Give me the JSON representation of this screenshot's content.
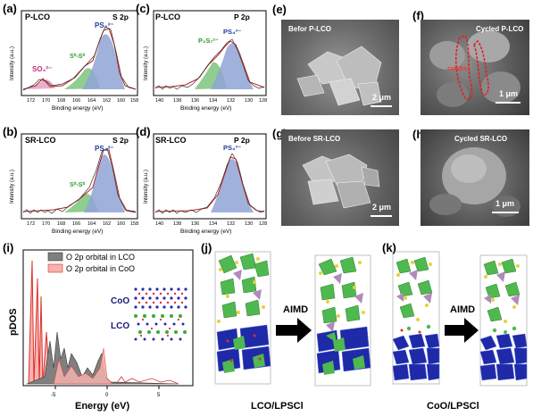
{
  "panels": {
    "a": {
      "letter": "(a)",
      "sample": "P-LCO",
      "orbital": "S 2p",
      "xlabel": "Binding energy (eV)",
      "ylabel": "Intensity (a.u.)",
      "ticks": [
        "172",
        "170",
        "168",
        "166",
        "164",
        "162",
        "160",
        "158"
      ],
      "peaks": [
        {
          "label": "SO₄²⁻",
          "color": "#c0307a"
        },
        {
          "label": "S⁰-S⁰",
          "color": "#2e9a2e"
        },
        {
          "label": "PS₄³⁻",
          "color": "#1f3f9e"
        }
      ]
    },
    "b": {
      "letter": "(b)",
      "sample": "SR-LCO",
      "orbital": "S 2p",
      "xlabel": "Binding energy (eV)",
      "ylabel": "Intensity (a.u.)",
      "ticks": [
        "172",
        "170",
        "168",
        "166",
        "164",
        "162",
        "160",
        "158"
      ],
      "peaks": [
        {
          "label": "S⁰-S⁰",
          "color": "#2e9a2e"
        },
        {
          "label": "PS₄³⁻",
          "color": "#1f3f9e"
        }
      ]
    },
    "c": {
      "letter": "(c)",
      "sample": "P-LCO",
      "orbital": "P 2p",
      "xlabel": "Binding energy (eV)",
      "ylabel": "Intensity (a.u.)",
      "ticks": [
        "140",
        "138",
        "136",
        "134",
        "132",
        "130",
        "128"
      ],
      "peaks": [
        {
          "label": "P₂S₇²⁻",
          "color": "#2e9a2e"
        },
        {
          "label": "PS₄³⁻",
          "color": "#1f3f9e"
        }
      ]
    },
    "d": {
      "letter": "(d)",
      "sample": "SR-LCO",
      "orbital": "P 2p",
      "xlabel": "Binding energy (eV)",
      "ylabel": "Intensity (a.u.)",
      "ticks": [
        "140",
        "138",
        "136",
        "134",
        "132",
        "130",
        "128"
      ],
      "peaks": [
        {
          "label": "PS₄³⁻",
          "color": "#1f3f9e"
        }
      ]
    },
    "e": {
      "letter": "(e)",
      "caption": "Befor  P-LCO",
      "scale": "2 μm"
    },
    "f": {
      "letter": "(f)",
      "caption": "Cycled  P-LCO",
      "crack": "cracks",
      "scale": "1 μm"
    },
    "g": {
      "letter": "(g)",
      "caption": "Before  SR-LCO",
      "scale": "2 μm"
    },
    "h": {
      "letter": "(h)",
      "caption": "Cycled  SR-LCO",
      "scale": "1 μm"
    },
    "i": {
      "letter": "(i)",
      "xlabel": "Energy (eV)",
      "ylabel": "pDOS",
      "legend": [
        "O 2p orbital in LCO",
        "O 2p orbital in CoO"
      ],
      "ticks": [
        "-5",
        "0",
        "5"
      ],
      "inset_labels": [
        "CoO",
        "LCO"
      ]
    },
    "j": {
      "letter": "(j)",
      "arrow": "AIMD",
      "caption": "LCO/LPSCl"
    },
    "k": {
      "letter": "(k)",
      "arrow": "AIMD",
      "caption": "CoO/LPSCl"
    }
  },
  "colors": {
    "lco": "#555555",
    "coo": "#e0302a",
    "pdos_coo_fill": "#f4b3b0",
    "pdos_lco_fill": "#808080",
    "blue_peak": "#8fa3d6",
    "green_peak": "#7dc47d",
    "pink_peak": "#e59ac0"
  }
}
